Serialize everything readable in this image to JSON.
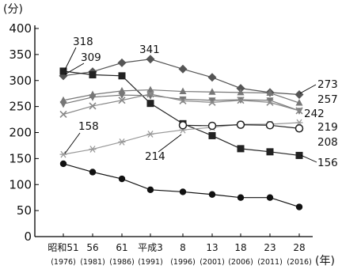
{
  "chart_data": {
    "type": "line",
    "ylabel": "(分)",
    "xlabel": "(年)",
    "ylim": [
      0,
      400
    ],
    "yticks": [
      0,
      50,
      100,
      150,
      200,
      250,
      300,
      350,
      400
    ],
    "categories": [
      "昭和51",
      "56",
      "61",
      "平成3",
      "8",
      "13",
      "18",
      "23",
      "28"
    ],
    "category_years": [
      "(1976)",
      "(1981)",
      "(1986)",
      "(1991)",
      "(1996)",
      "(2001)",
      "(2006)",
      "(2011)",
      "(2016)"
    ],
    "grid": false,
    "series": [
      {
        "marker": "diamond",
        "color": "#555555",
        "values": [
          309,
          317,
          334,
          341,
          322,
          306,
          285,
          277,
          273
        ]
      },
      {
        "marker": "square",
        "color": "#222222",
        "values": [
          318,
          311,
          309,
          256,
          217,
          194,
          169,
          163,
          156
        ]
      },
      {
        "marker": "triangle",
        "color": "#777777",
        "values": [
          262,
          273,
          280,
          282,
          279,
          278,
          277,
          276,
          257
        ]
      },
      {
        "marker": "triangle-down",
        "color": "#777777",
        "values": [
          255,
          268,
          272,
          271,
          264,
          262,
          263,
          262,
          242
        ]
      },
      {
        "marker": "x",
        "color": "#888888",
        "values": [
          235,
          251,
          262,
          274,
          261,
          258,
          262,
          258,
          242
        ]
      },
      {
        "marker": "asterisk",
        "color": "#999999",
        "values": [
          158,
          168,
          182,
          197,
          205,
          210,
          216,
          216,
          219
        ]
      },
      {
        "marker": "open-circle",
        "color": "#222222",
        "values": [
          null,
          null,
          null,
          null,
          214,
          213,
          215,
          214,
          208
        ]
      },
      {
        "marker": "filled-circle",
        "color": "#111111",
        "values": [
          140,
          124,
          111,
          90,
          86,
          81,
          75,
          75,
          57
        ]
      }
    ],
    "annotations": [
      "318",
      "309",
      "341",
      "158",
      "214",
      "273",
      "257",
      "242",
      "219",
      "208",
      "156"
    ]
  }
}
